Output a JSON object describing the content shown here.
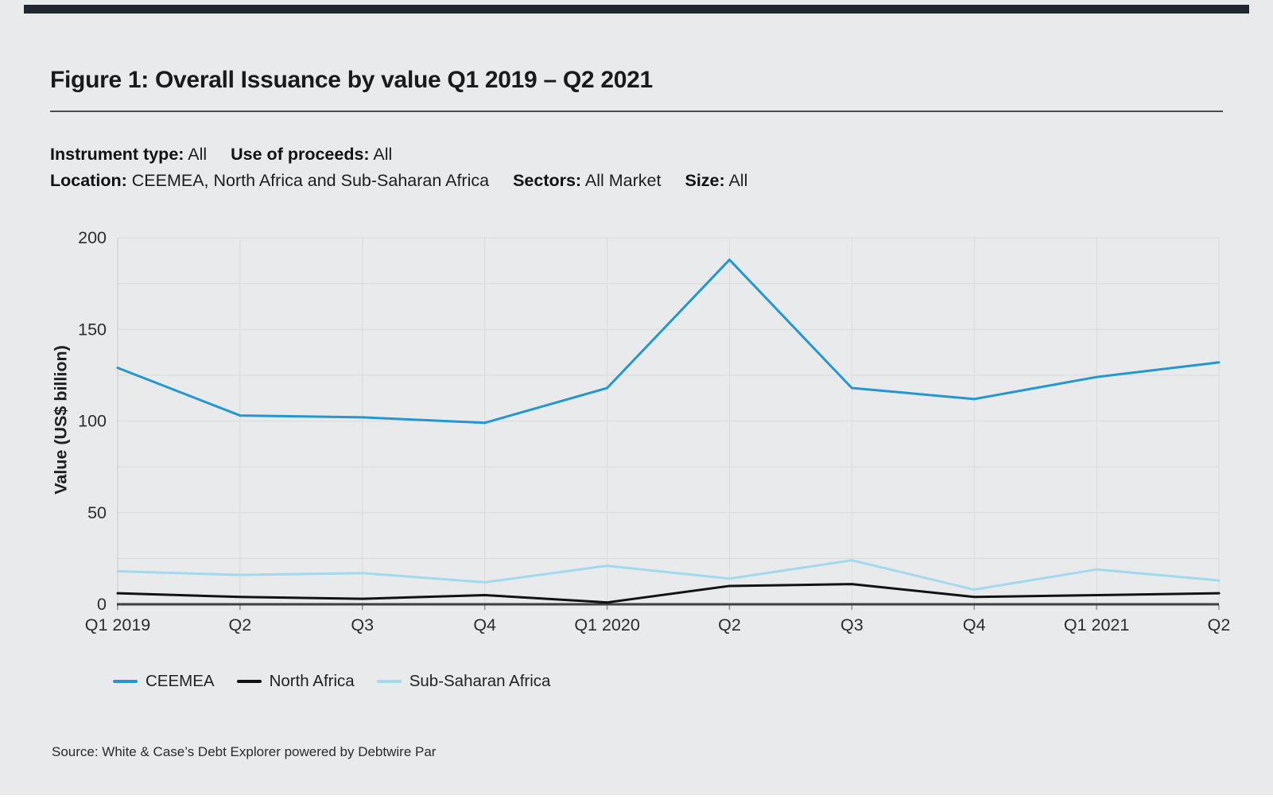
{
  "page": {
    "background": "#e9eaec",
    "topbar_color": "#1f2733"
  },
  "header": {
    "title": "Figure 1: Overall Issuance by value Q1 2019 – Q2 2021"
  },
  "filters": {
    "line1": [
      {
        "label": "Instrument type:",
        "value": "All"
      },
      {
        "label": "Use of proceeds:",
        "value": "All"
      }
    ],
    "line2": [
      {
        "label": "Location:",
        "value": "CEEMEA, North Africa and Sub-Saharan Africa"
      },
      {
        "label": "Sectors:",
        "value": "All Market"
      },
      {
        "label": "Size:",
        "value": "All"
      }
    ]
  },
  "chart_data": {
    "type": "line",
    "title": "Overall Issuance by value Q1 2019 – Q2 2021",
    "xlabel": "",
    "ylabel": "Value (US$ billion)",
    "ylim": [
      0,
      200
    ],
    "yticks": [
      0,
      50,
      100,
      150,
      200
    ],
    "grid": true,
    "grid_minor_step": 25,
    "legend_position": "bottom-left",
    "categories": [
      "Q1 2019",
      "Q2",
      "Q3",
      "Q4",
      "Q1 2020",
      "Q2",
      "Q3",
      "Q4",
      "Q1 2021",
      "Q2"
    ],
    "series": [
      {
        "name": "CEEMEA",
        "color": "#2397cf",
        "values": [
          129,
          103,
          102,
          99,
          118,
          188,
          118,
          112,
          124,
          132
        ]
      },
      {
        "name": "North Africa",
        "color": "#121212",
        "values": [
          6,
          4,
          3,
          5,
          1,
          10,
          11,
          4,
          5,
          6
        ]
      },
      {
        "name": "Sub-Saharan Africa",
        "color": "#a3d9ef",
        "values": [
          18,
          16,
          17,
          12,
          21,
          14,
          24,
          8,
          19,
          13
        ]
      }
    ]
  },
  "source": {
    "text": "Source: White & Case’s Debt Explorer powered by Debtwire Par"
  }
}
